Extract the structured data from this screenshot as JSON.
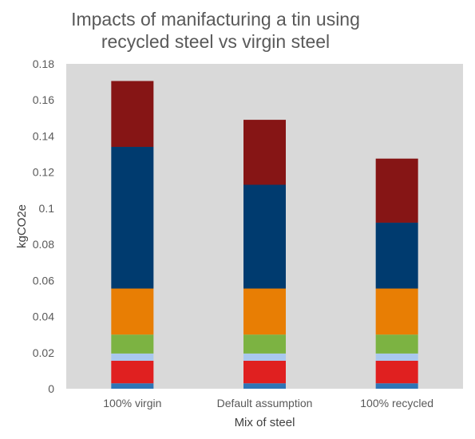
{
  "chart_data": {
    "type": "bar",
    "stacked": true,
    "title_lines": [
      "Impacts of manifacturing a tin using",
      "recycled steel vs virgin steel"
    ],
    "xlabel": "Mix of steel",
    "ylabel": "kgCO2e",
    "ylim": [
      0,
      0.18
    ],
    "yticks": [
      0,
      0.02,
      0.04,
      0.06,
      0.08,
      0.1,
      0.12,
      0.14,
      0.16,
      0.18
    ],
    "ytick_labels": [
      "0",
      "0.02",
      "0.04",
      "0.06",
      "0.08",
      "0.1",
      "0.12",
      "0.14",
      "0.16",
      "0.18"
    ],
    "categories": [
      "100% virgin",
      "Default assumption",
      "100% recycled"
    ],
    "grid": false,
    "legend": "none",
    "plot_background": "#d9d9d9",
    "series": [
      {
        "color": "#2e75b6",
        "values": [
          0.003,
          0.003,
          0.003
        ]
      },
      {
        "color": "#e02020",
        "values": [
          0.0125,
          0.0125,
          0.0125
        ]
      },
      {
        "color": "#a9c8ee",
        "values": [
          0.004,
          0.004,
          0.004
        ]
      },
      {
        "color": "#7cb342",
        "values": [
          0.0105,
          0.0105,
          0.0105
        ]
      },
      {
        "color": "#e87e04",
        "values": [
          0.0255,
          0.0255,
          0.0255
        ]
      },
      {
        "color": "#003b6f",
        "values": [
          0.0785,
          0.0575,
          0.0365
        ]
      },
      {
        "color": "#861515",
        "values": [
          0.0365,
          0.036,
          0.0355
        ]
      }
    ]
  }
}
